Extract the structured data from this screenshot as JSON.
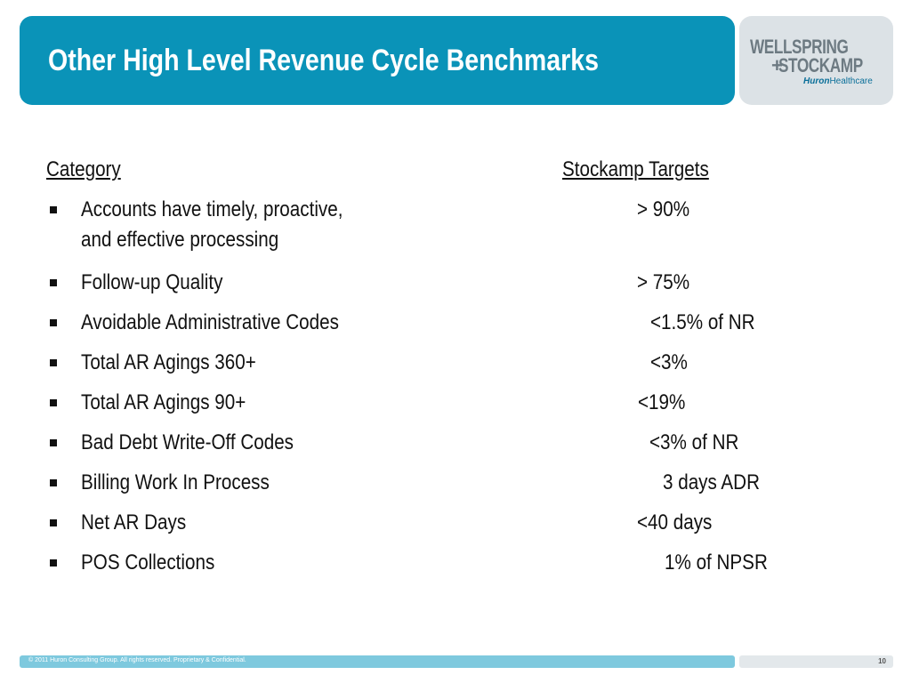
{
  "header": {
    "title": "Other High Level Revenue Cycle Benchmarks",
    "logo": {
      "line1": "WELLSPRING",
      "plus": "+",
      "line2": "STOCKAMP",
      "sub_bold": "Huron",
      "sub_rest": "Healthcare"
    }
  },
  "table": {
    "category_header": "Category",
    "target_header": "Stockamp Targets",
    "rows": [
      {
        "label_lines": [
          "Accounts have timely, proactive,",
          "and effective processing"
        ],
        "target": "> 90%"
      },
      {
        "label_lines": [
          "Follow-up Quality"
        ],
        "target": "> 75%"
      },
      {
        "label_lines": [
          "Avoidable Administrative Codes"
        ],
        "target": "<1.5% of NR"
      },
      {
        "label_lines": [
          "Total AR Agings 360+"
        ],
        "target": "<3%"
      },
      {
        "label_lines": [
          "Total AR Agings 90+"
        ],
        "target": "<19%"
      },
      {
        "label_lines": [
          "Bad Debt Write-Off Codes"
        ],
        "target": "<3% of NR"
      },
      {
        "label_lines": [
          "Billing Work In Process"
        ],
        "target": "3 days ADR"
      },
      {
        "label_lines": [
          "Net AR Days"
        ],
        "target": "<40 days"
      },
      {
        "label_lines": [
          "POS Collections"
        ],
        "target": "1% of NPSR"
      }
    ]
  },
  "footer": {
    "copyright": "© 2011 Huron Consulting Group. All rights reserved. Proprietary & Confidential.",
    "page_number": "10"
  },
  "colors": {
    "title_bar": "#0a93b8",
    "logo_box": "#dce2e6",
    "footer_bar": "#7ec9de"
  }
}
